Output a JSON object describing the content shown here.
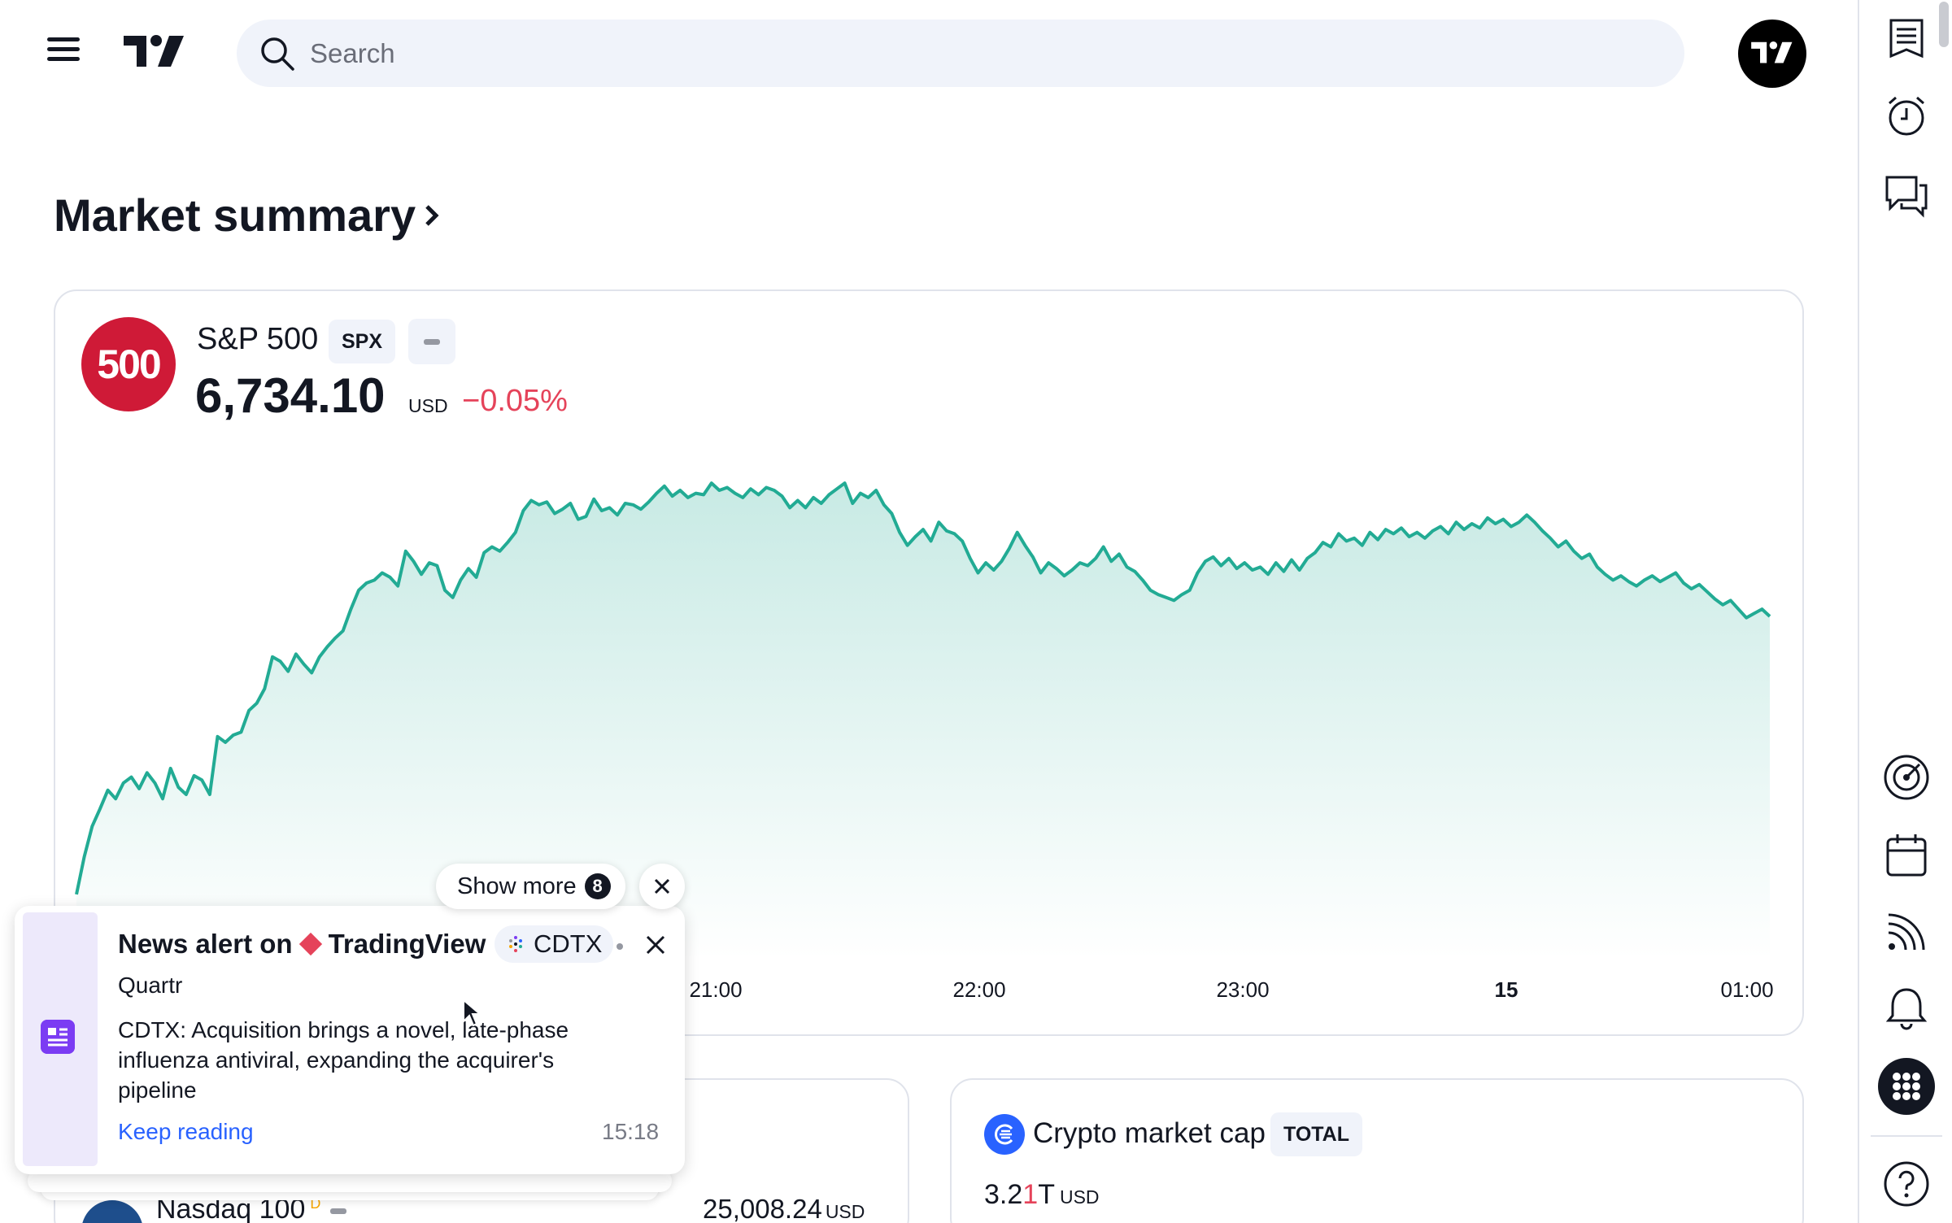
{
  "header": {
    "search_placeholder": "Search"
  },
  "heading": {
    "title": "Market summary"
  },
  "main_symbol": {
    "logo_text": "500",
    "name": "S&P 500",
    "ticker": "SPX",
    "price": "6,734.10",
    "currency": "USD",
    "change": "−0.05%",
    "line_color": "#22ab94",
    "change_color": "#e5435a"
  },
  "chart_data": {
    "type": "area",
    "x_tick_labels": [
      "21:00",
      "22:00",
      "23:00",
      "15",
      "01:00"
    ],
    "values": [
      6720.2,
      6722.8,
      6724.9,
      6726.1,
      6727.4,
      6726.8,
      6727.9,
      6728.3,
      6727.5,
      6728.6,
      6727.9,
      6726.8,
      6728.9,
      6727.6,
      6727.1,
      6728.4,
      6728.1,
      6727.1,
      6731.1,
      6730.7,
      6731.2,
      6731.4,
      6732.9,
      6733.4,
      6734.4,
      6736.6,
      6736.3,
      6735.6,
      6736.8,
      6736.1,
      6735.5,
      6736.6,
      6737.3,
      6737.9,
      6738.4,
      6739.9,
      6741.2,
      6741.7,
      6741.9,
      6742.4,
      6742.1,
      6741.5,
      6743.9,
      6743.2,
      6742.3,
      6743.1,
      6742.9,
      6741.2,
      6740.7,
      6741.9,
      6742.7,
      6742.1,
      6743.8,
      6744.2,
      6743.9,
      6744.5,
      6745.2,
      6746.7,
      6747.4,
      6747.1,
      6747.3,
      6746.5,
      6746.8,
      6747.2,
      6746.1,
      6746.3,
      6747.5,
      6746.7,
      6746.9,
      6746.4,
      6747.2,
      6747.1,
      6746.8,
      6747.3,
      6747.9,
      6748.4,
      6747.7,
      6748.1,
      6747.6,
      6747.9,
      6747.8,
      6748.6,
      6748.1,
      6748.3,
      6747.9,
      6747.6,
      6748.2,
      6747.8,
      6748.3,
      6748.1,
      6747.7,
      6746.9,
      6747.4,
      6746.9,
      6747.6,
      6747.2,
      6747.8,
      6748.2,
      6748.6,
      6747.2,
      6747.9,
      6747.6,
      6748.1,
      6747.1,
      6746.5,
      6745.2,
      6744.3,
      6744.9,
      6745.4,
      6744.6,
      6745.9,
      6745.3,
      6745.1,
      6744.6,
      6743.4,
      6742.4,
      6743.1,
      6742.6,
      6743.2,
      6744.1,
      6745.2,
      6744.3,
      6743.5,
      6742.4,
      6743.1,
      6742.7,
      6742.2,
      6742.6,
      6743.1,
      6742.9,
      6743.4,
      6744.2,
      6743.2,
      6743.7,
      6742.8,
      6742.5,
      6741.9,
      6741.2,
      6740.9,
      6740.7,
      6740.5,
      6740.9,
      6741.2,
      6742.4,
      6743.2,
      6743.5,
      6742.9,
      6743.4,
      6742.7,
      6743.1,
      6742.6,
      6742.8,
      6742.3,
      6743.1,
      6742.5,
      6743.3,
      6742.6,
      6743.4,
      6743.8,
      6744.5,
      6744.2,
      6745.1,
      6744.6,
      6744.8,
      6744.3,
      6745.2,
      6744.7,
      6745.4,
      6745.1,
      6745.5,
      6744.9,
      6745.2,
      6744.8,
      6745.3,
      6745.6,
      6745.1,
      6745.9,
      6745.4,
      6745.8,
      6745.5,
      6746.2,
      6745.8,
      6746.1,
      6745.6,
      6745.9,
      6746.4,
      6745.9,
      6745.3,
      6744.8,
      6744.2,
      6744.6,
      6743.9,
      6743.4,
      6743.7,
      6742.8,
      6742.3,
      6741.9,
      6742.2,
      6741.8,
      6741.5,
      6741.9,
      6742.2,
      6741.8,
      6742.1,
      6742.4,
      6741.7,
      6741.3,
      6741.6,
      6741.1,
      6740.6,
      6740.2,
      6740.5,
      6739.9,
      6739.3,
      6739.6,
      6739.9,
      6739.4
    ]
  },
  "notification": {
    "title_prefix": "News alert on",
    "title_brand": "TradingView",
    "symbol": "CDTX",
    "source": "Quartr",
    "body": "CDTX: Acquisition brings a novel, late-phase influenza antiviral, expanding the acquirer's pipeline",
    "link": "Keep reading",
    "time": "15:18",
    "show_more_label": "Show more",
    "show_more_count": "8"
  },
  "lower_cards": {
    "crypto": {
      "name": "Crypto market cap",
      "ticker": "TOTAL",
      "value_a": "3.2",
      "value_b": "1",
      "value_unit": "T",
      "currency": "USD"
    },
    "nasdaq": {
      "name": "Nasdaq 100",
      "superscript": "D",
      "value": "25,008.24",
      "currency": "USD"
    }
  }
}
